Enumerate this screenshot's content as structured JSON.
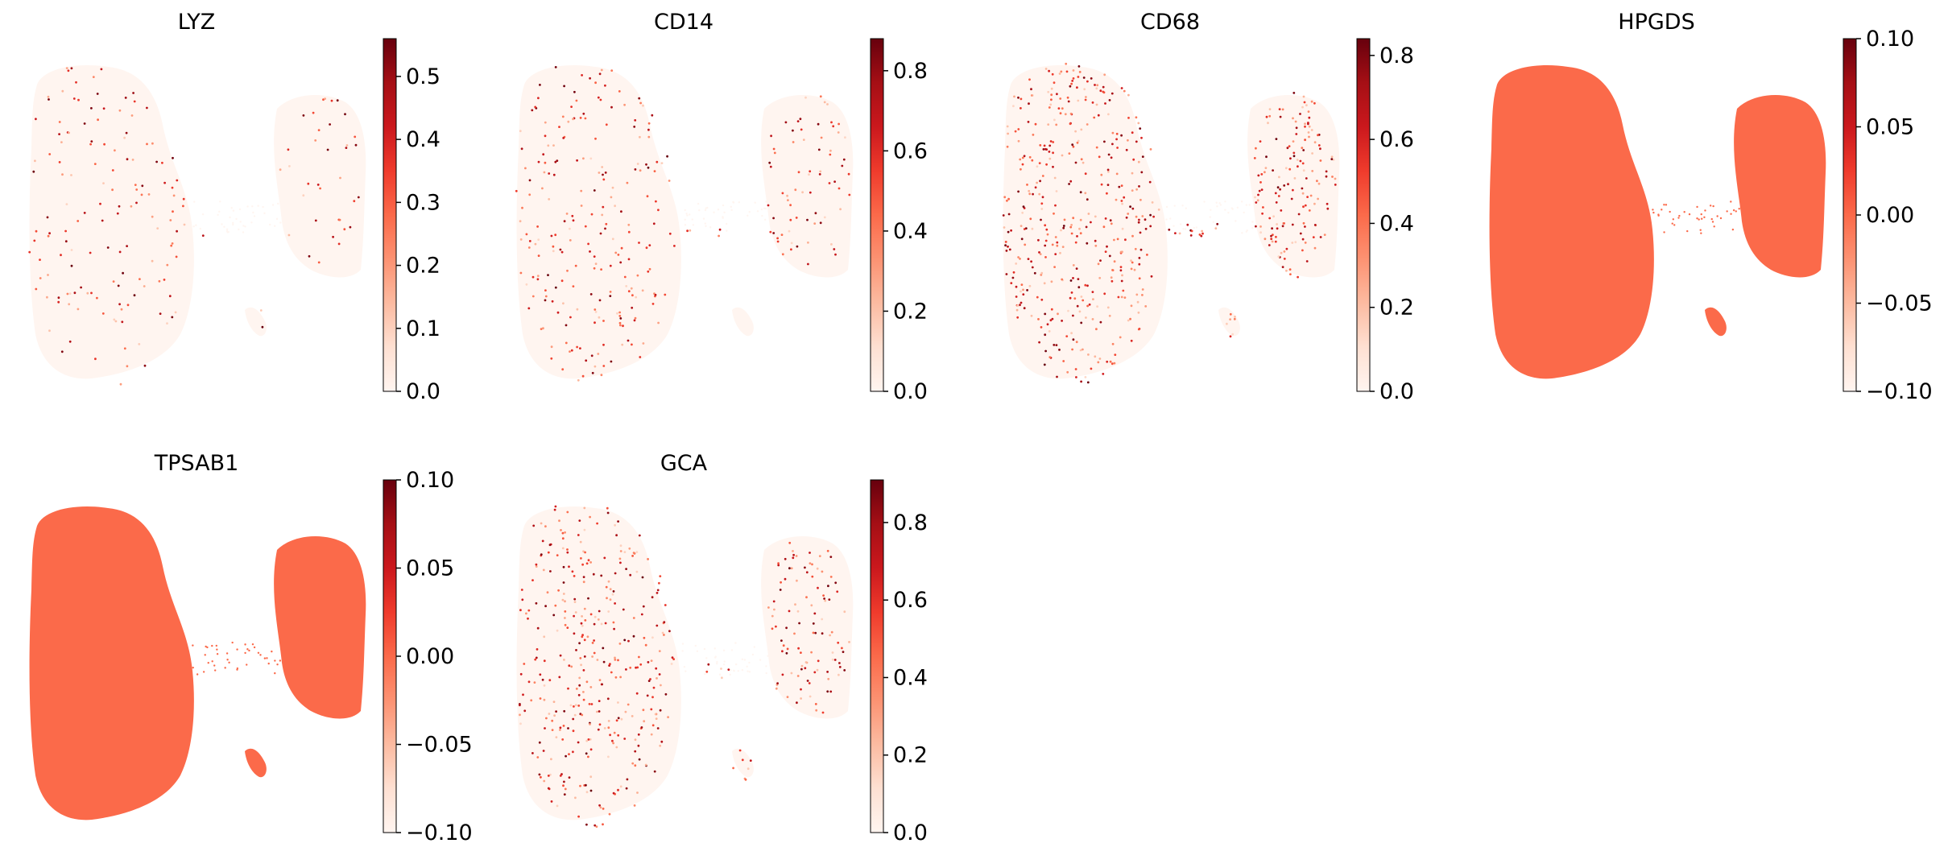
{
  "figure": {
    "type": "umap-embedding-grid",
    "colormap": "Reds",
    "background": "#ffffff"
  },
  "chart_data": [
    {
      "type": "scatter",
      "title": "LYZ",
      "xlabel": "",
      "ylabel": "",
      "colorbar": {
        "vmin": 0.0,
        "vmax": 0.56,
        "ticks": [
          0.0,
          0.1,
          0.2,
          0.3,
          0.4,
          0.5
        ],
        "tick_labels": [
          "0.0",
          "0.1",
          "0.2",
          "0.3",
          "0.4",
          "0.5"
        ]
      },
      "expression_pattern": "sparse",
      "sparse_fraction": 0.03
    },
    {
      "type": "scatter",
      "title": "CD14",
      "xlabel": "",
      "ylabel": "",
      "colorbar": {
        "vmin": 0.0,
        "vmax": 0.88,
        "ticks": [
          0.0,
          0.2,
          0.4,
          0.6,
          0.8
        ],
        "tick_labels": [
          "0.0",
          "0.2",
          "0.4",
          "0.6",
          "0.8"
        ]
      },
      "expression_pattern": "sparse",
      "sparse_fraction": 0.05
    },
    {
      "type": "scatter",
      "title": "CD68",
      "xlabel": "",
      "ylabel": "",
      "colorbar": {
        "vmin": 0.0,
        "vmax": 0.84,
        "ticks": [
          0.0,
          0.2,
          0.4,
          0.6,
          0.8
        ],
        "tick_labels": [
          "0.0",
          "0.2",
          "0.4",
          "0.6",
          "0.8"
        ]
      },
      "expression_pattern": "sparse",
      "sparse_fraction": 0.1
    },
    {
      "type": "scatter",
      "title": "HPGDS",
      "xlabel": "",
      "ylabel": "",
      "colorbar": {
        "vmin": -0.1,
        "vmax": 0.1,
        "ticks": [
          -0.1,
          -0.05,
          0.0,
          0.05,
          0.1
        ],
        "tick_labels": [
          "−0.10",
          "−0.05",
          "0.00",
          "0.05",
          "0.10"
        ]
      },
      "expression_pattern": "uniform",
      "uniform_value": 0.0
    },
    {
      "type": "scatter",
      "title": "TPSAB1",
      "xlabel": "",
      "ylabel": "",
      "colorbar": {
        "vmin": -0.1,
        "vmax": 0.1,
        "ticks": [
          -0.1,
          -0.05,
          0.0,
          0.05,
          0.1
        ],
        "tick_labels": [
          "−0.10",
          "−0.05",
          "0.00",
          "0.05",
          "0.10"
        ]
      },
      "expression_pattern": "uniform",
      "uniform_value": 0.0
    },
    {
      "type": "scatter",
      "title": "GCA",
      "xlabel": "",
      "ylabel": "",
      "colorbar": {
        "vmin": 0.0,
        "vmax": 0.91,
        "ticks": [
          0.0,
          0.2,
          0.4,
          0.6,
          0.8
        ],
        "tick_labels": [
          "0.0",
          "0.2",
          "0.4",
          "0.6",
          "0.8"
        ]
      },
      "expression_pattern": "sparse",
      "sparse_fraction": 0.08
    }
  ]
}
